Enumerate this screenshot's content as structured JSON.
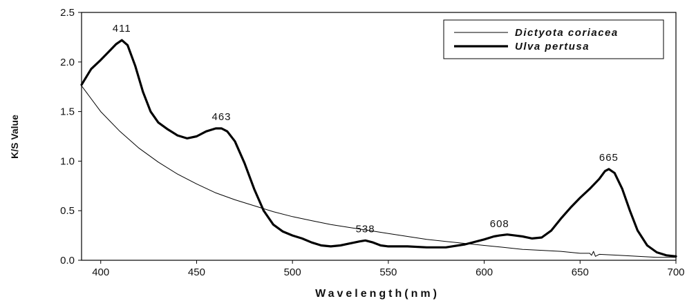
{
  "chart_data": {
    "type": "line",
    "xlabel": "Wavelength(nm)",
    "ylabel": "K/S Value",
    "xlim": [
      390,
      700
    ],
    "ylim": [
      0,
      2.5
    ],
    "x_ticks": [
      400,
      450,
      500,
      550,
      600,
      650,
      700
    ],
    "y_ticks": [
      0.0,
      0.5,
      1.0,
      1.5,
      2.0,
      2.5
    ],
    "x_tick_labels": [
      "400",
      "450",
      "500",
      "550",
      "600",
      "650",
      "700"
    ],
    "y_tick_labels": [
      "0.0",
      "0.5",
      "1.0",
      "1.5",
      "2.0",
      "2.5"
    ],
    "grid": false,
    "legend_position": "top-right",
    "series": [
      {
        "name": "Dictyota coriacea",
        "style": "thin",
        "color": "#000000",
        "x": [
          390,
          400,
          410,
          420,
          430,
          440,
          450,
          460,
          470,
          480,
          490,
          500,
          510,
          520,
          530,
          540,
          550,
          560,
          570,
          580,
          590,
          600,
          610,
          620,
          630,
          640,
          650,
          655,
          656,
          657,
          658,
          660,
          670,
          680,
          690,
          700
        ],
        "y": [
          1.76,
          1.5,
          1.3,
          1.13,
          0.99,
          0.87,
          0.77,
          0.68,
          0.61,
          0.55,
          0.49,
          0.44,
          0.4,
          0.36,
          0.33,
          0.3,
          0.27,
          0.24,
          0.21,
          0.19,
          0.17,
          0.15,
          0.13,
          0.11,
          0.1,
          0.09,
          0.07,
          0.07,
          0.05,
          0.09,
          0.04,
          0.06,
          0.05,
          0.04,
          0.03,
          0.03
        ]
      },
      {
        "name": "Ulva pertusa",
        "style": "thick",
        "color": "#000000",
        "x": [
          390,
          395,
          400,
          405,
          408,
          411,
          414,
          418,
          422,
          426,
          430,
          435,
          440,
          445,
          450,
          455,
          460,
          463,
          466,
          470,
          475,
          480,
          485,
          490,
          495,
          500,
          505,
          510,
          515,
          520,
          525,
          530,
          535,
          538,
          542,
          546,
          550,
          560,
          570,
          580,
          590,
          600,
          605,
          608,
          612,
          616,
          620,
          625,
          630,
          635,
          640,
          645,
          650,
          655,
          660,
          663,
          665,
          668,
          672,
          676,
          680,
          685,
          690,
          695,
          700
        ],
        "y": [
          1.77,
          1.93,
          2.02,
          2.12,
          2.18,
          2.22,
          2.17,
          1.96,
          1.7,
          1.5,
          1.39,
          1.32,
          1.26,
          1.23,
          1.25,
          1.3,
          1.33,
          1.33,
          1.3,
          1.2,
          0.98,
          0.72,
          0.5,
          0.36,
          0.29,
          0.25,
          0.22,
          0.18,
          0.15,
          0.14,
          0.15,
          0.17,
          0.19,
          0.2,
          0.18,
          0.15,
          0.14,
          0.14,
          0.13,
          0.13,
          0.16,
          0.21,
          0.24,
          0.25,
          0.26,
          0.25,
          0.24,
          0.22,
          0.23,
          0.3,
          0.42,
          0.53,
          0.63,
          0.72,
          0.82,
          0.9,
          0.92,
          0.88,
          0.72,
          0.5,
          0.3,
          0.15,
          0.08,
          0.05,
          0.04
        ]
      }
    ],
    "annotations": [
      {
        "text": "411",
        "x": 411,
        "y": 2.22
      },
      {
        "text": "463",
        "x": 463,
        "y": 1.33
      },
      {
        "text": "538",
        "x": 538,
        "y": 0.2
      },
      {
        "text": "608",
        "x": 608,
        "y": 0.25
      },
      {
        "text": "665",
        "x": 665,
        "y": 0.92
      }
    ]
  }
}
